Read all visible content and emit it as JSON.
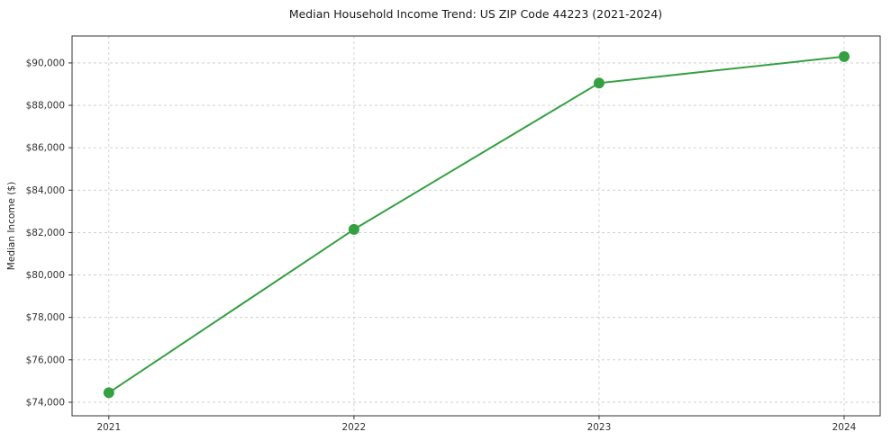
{
  "chart_data": {
    "type": "line",
    "title": "Median Household Income Trend: US ZIP Code 44223 (2021-2024)",
    "xlabel": "",
    "ylabel": "Median Income ($)",
    "x": [
      2021,
      2022,
      2023,
      2024
    ],
    "y": [
      74450,
      82150,
      89050,
      90300
    ],
    "series": [
      {
        "name": "Median Household Income",
        "values": [
          74450,
          82150,
          89050,
          90300
        ]
      }
    ],
    "xtick_labels": [
      "2021",
      "2022",
      "2023",
      "2024"
    ],
    "xtick_values": [
      2021,
      2022,
      2023,
      2024
    ],
    "ytick_values": [
      74000,
      76000,
      78000,
      80000,
      82000,
      84000,
      86000,
      88000,
      90000
    ],
    "ytick_labels": [
      "$74,000",
      "$76,000",
      "$78,000",
      "$80,000",
      "$82,000",
      "$84,000",
      "$86,000",
      "$88,000",
      "$90,000"
    ],
    "xlim": [
      2020.85,
      2024.147
    ],
    "ylim": [
      73360,
      91270
    ],
    "grid": "on",
    "legend": "none",
    "colors": {
      "line": "#34a042",
      "marker": "#34a042",
      "grid": "#c9c9c9",
      "axis": "#333333",
      "text": "#262626",
      "background": "#ffffff"
    }
  }
}
